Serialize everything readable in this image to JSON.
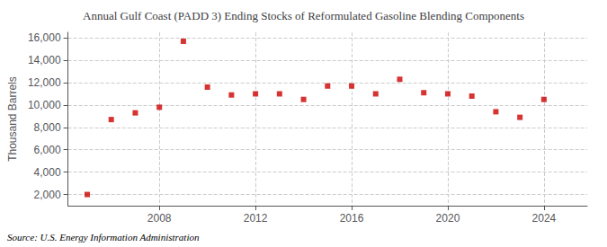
{
  "chart_data": {
    "type": "scatter",
    "title": "Annual Gulf Coast (PADD 3) Ending Stocks of Reformulated Gasoline Blending Components",
    "ylabel": "Thousand Barrels",
    "source": "Source: U.S. Energy Information Administration",
    "x": [
      2005,
      2006,
      2007,
      2008,
      2009,
      2010,
      2011,
      2012,
      2013,
      2014,
      2015,
      2016,
      2017,
      2018,
      2019,
      2020,
      2021,
      2022,
      2023,
      2024
    ],
    "values": [
      2000,
      8700,
      9300,
      9800,
      15700,
      11600,
      10900,
      11000,
      11000,
      10500,
      11700,
      11700,
      11000,
      12300,
      11100,
      11000,
      10800,
      9400,
      8900,
      10500
    ],
    "color": "#cc0000",
    "marker": "square",
    "xlim": [
      2004.2,
      2025.8
    ],
    "xticks": [
      2008,
      2012,
      2016,
      2020,
      2024
    ],
    "ylim": [
      1000,
      16500
    ],
    "yticks": [
      {
        "value": 2000,
        "label": "2,000"
      },
      {
        "value": 4000,
        "label": "4,000"
      },
      {
        "value": 6000,
        "label": "6,000"
      },
      {
        "value": 8000,
        "label": "8,000"
      },
      {
        "value": 10000,
        "label": "10,000"
      },
      {
        "value": 12000,
        "label": "12,000"
      },
      {
        "value": 14000,
        "label": "14,000"
      },
      {
        "value": 16000,
        "label": "16,000"
      }
    ],
    "grid": true
  }
}
